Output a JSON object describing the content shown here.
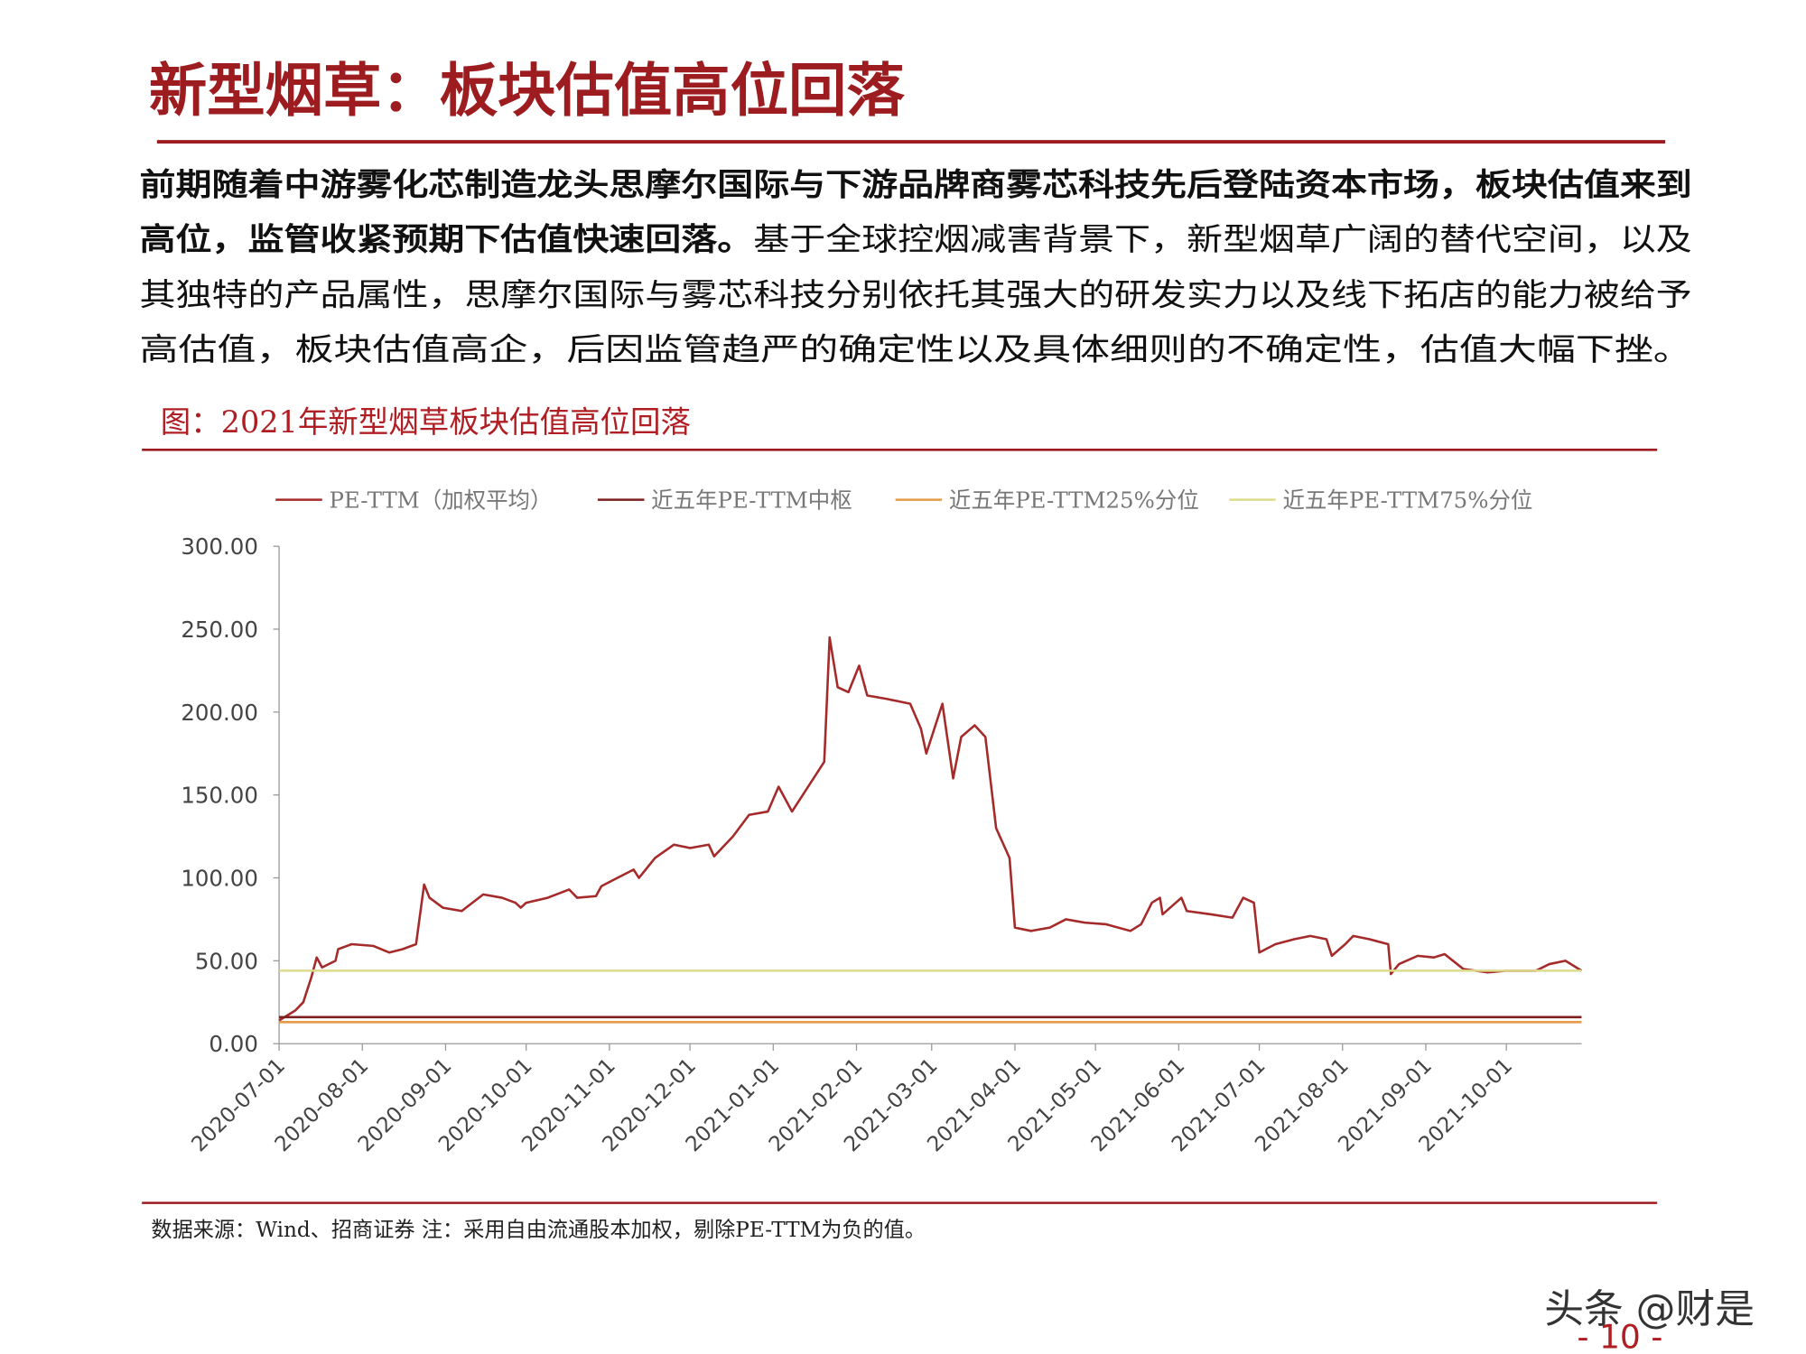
{
  "header": {
    "title": "新型烟草：板块估值高位回落"
  },
  "paragraph": {
    "lines": [
      [
        {
          "bold": "前期随着中游雾化芯制造龙头思摩尔国际与下游品牌商雾芯科技先后登陆资本市场，板块估值来到"
        }
      ],
      [
        {
          "bold": "高位，监管收紧预期下估值快速回落。"
        },
        {
          "regular": "基于全球控烟减害背景下，新型烟草广阔的替代空间，以及"
        }
      ],
      [
        {
          "regular": "其独特的产品属性，思摩尔国际与雾芯科技分别依托其强大的研发实力以及线下拓店的能力被给予"
        }
      ],
      [
        {
          "regular": "高估值，板块估值高企，后因监管趋严的确定性以及具体细则的不确定性，估值大幅下挫。"
        }
      ]
    ]
  },
  "chart_caption": "图：2021年新型烟草板块估值高位回落",
  "chart_data": {
    "type": "line",
    "x": [
      "2020-07-01",
      "2020-07-07",
      "2020-07-10",
      "2020-07-13",
      "2020-07-15",
      "2020-07-17",
      "2020-07-22",
      "2020-07-23",
      "2020-07-28",
      "2020-08-05",
      "2020-08-11",
      "2020-08-16",
      "2020-08-21",
      "2020-08-24",
      "2020-08-26",
      "2020-08-31",
      "2020-09-07",
      "2020-09-15",
      "2020-09-22",
      "2020-09-27",
      "2020-09-29",
      "2020-10-01",
      "2020-10-09",
      "2020-10-17",
      "2020-10-20",
      "2020-10-27",
      "2020-10-29",
      "2020-11-04",
      "2020-11-10",
      "2020-11-12",
      "2020-11-18",
      "2020-11-25",
      "2020-12-01",
      "2020-12-08",
      "2020-12-10",
      "2020-12-17",
      "2020-12-23",
      "2020-12-30",
      "2021-01-03",
      "2021-01-08",
      "2021-01-12",
      "2021-01-16",
      "2021-01-20",
      "2021-01-22",
      "2021-01-25",
      "2021-01-29",
      "2021-02-02",
      "2021-02-05",
      "2021-02-12",
      "2021-02-21",
      "2021-02-25",
      "2021-02-27",
      "2021-03-05",
      "2021-03-09",
      "2021-03-12",
      "2021-03-17",
      "2021-03-21",
      "2021-03-25",
      "2021-03-30",
      "2021-04-01",
      "2021-04-07",
      "2021-04-14",
      "2021-04-20",
      "2021-04-27",
      "2021-05-05",
      "2021-05-14",
      "2021-05-18",
      "2021-05-22",
      "2021-05-25",
      "2021-05-26",
      "2021-06-02",
      "2021-06-04",
      "2021-06-13",
      "2021-06-21",
      "2021-06-25",
      "2021-06-29",
      "2021-07-01",
      "2021-07-07",
      "2021-07-14",
      "2021-07-20",
      "2021-07-26",
      "2021-07-28",
      "2021-08-02",
      "2021-08-05",
      "2021-08-11",
      "2021-08-18",
      "2021-08-19",
      "2021-08-22",
      "2021-08-29",
      "2021-09-04",
      "2021-09-08",
      "2021-09-15",
      "2021-09-24",
      "2021-10-01",
      "2021-10-12",
      "2021-10-17",
      "2021-10-23",
      "2021-10-29"
    ],
    "series": [
      {
        "name": "PE-TTM（加权平均）",
        "color": "#a52a2a",
        "values": [
          14,
          20,
          25,
          40,
          52,
          46,
          50,
          57,
          60,
          59,
          55,
          57,
          60,
          96,
          88,
          82,
          80,
          90,
          88,
          85,
          82,
          85,
          88,
          93,
          88,
          89,
          95,
          100,
          105,
          100,
          112,
          120,
          118,
          120,
          113,
          125,
          138,
          140,
          155,
          140,
          150,
          160,
          170,
          245,
          215,
          212,
          228,
          210,
          208,
          205,
          190,
          175,
          205,
          160,
          185,
          192,
          185,
          130,
          112,
          70,
          68,
          70,
          75,
          73,
          72,
          68,
          72,
          85,
          88,
          78,
          88,
          80,
          78,
          76,
          88,
          85,
          55,
          60,
          63,
          65,
          63,
          53,
          60,
          65,
          63,
          60,
          42,
          48,
          53,
          52,
          54,
          45,
          43,
          44,
          44,
          48,
          50,
          44
        ]
      },
      {
        "name": "近五年PE-TTM中枢",
        "color": "#7b1f1f",
        "value": 16
      },
      {
        "name": "近五年PE-TTM25%分位",
        "color": "#e39b4a",
        "value": 13
      },
      {
        "name": "近五年PE-TTM75%分位",
        "color": "#dcdc8c",
        "value": 44
      }
    ],
    "xlim": [
      "2020-07-01",
      "2021-10-29"
    ],
    "xticks": [
      "2020-07-01",
      "2020-08-01",
      "2020-09-01",
      "2020-10-01",
      "2020-11-01",
      "2020-12-01",
      "2021-01-01",
      "2021-02-01",
      "2021-03-01",
      "2021-04-01",
      "2021-05-01",
      "2021-06-01",
      "2021-07-01",
      "2021-08-01",
      "2021-09-01",
      "2021-10-01"
    ],
    "ylim": [
      0,
      300
    ],
    "yticks": [
      {
        "value": 0,
        "label": "0.00"
      },
      {
        "value": 50,
        "label": "50.00"
      },
      {
        "value": 100,
        "label": "100.00"
      },
      {
        "value": 150,
        "label": "150.00"
      },
      {
        "value": 200,
        "label": "200.00"
      },
      {
        "value": 250,
        "label": "250.00"
      },
      {
        "value": 300,
        "label": "300.00"
      }
    ]
  },
  "source": "数据来源：Wind、招商证券 注：采用自由流通股本加权，剔除PE-TTM为负的值。",
  "watermark": "头条 @财是",
  "page_number": "- 10 -"
}
